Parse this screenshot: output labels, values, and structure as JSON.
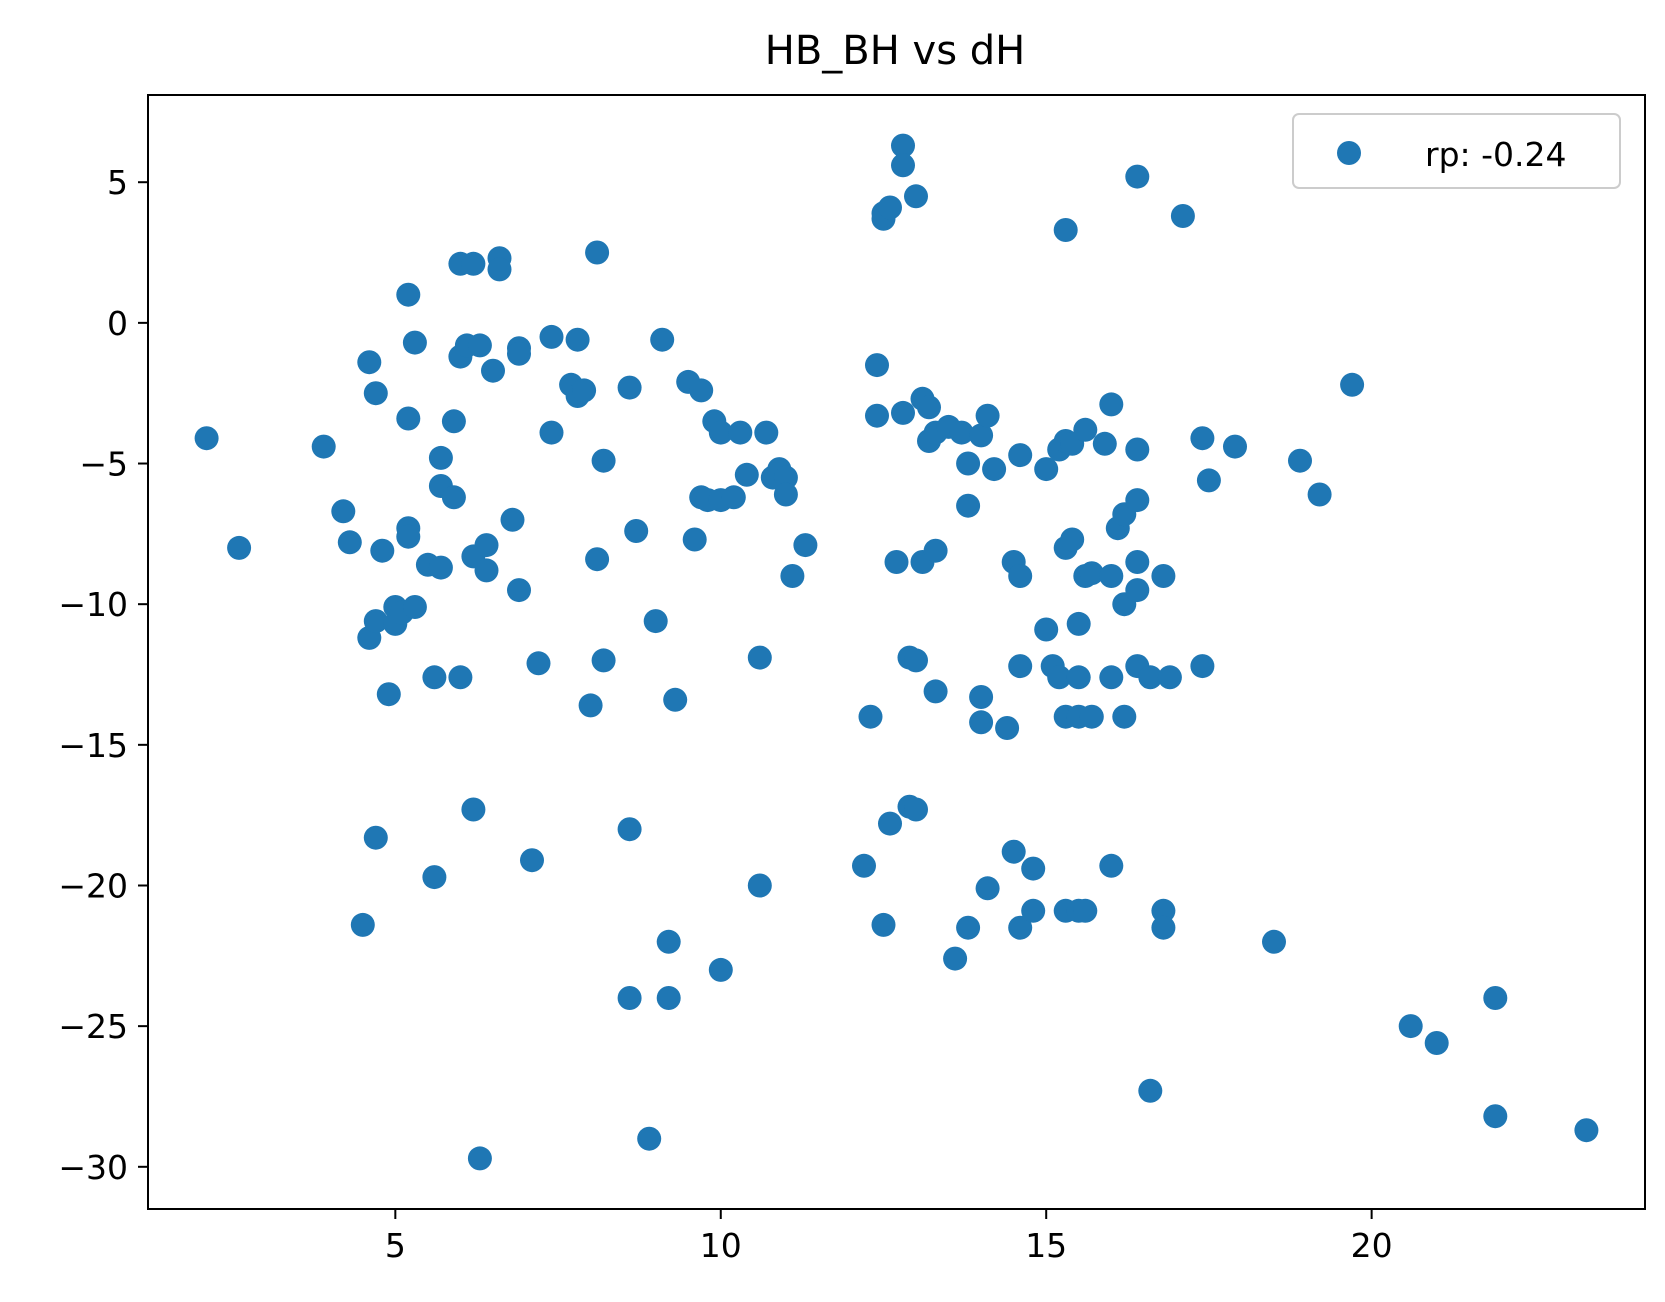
{
  "chart_data": {
    "type": "scatter",
    "title": "HB_BH vs dH",
    "xlabel": "",
    "ylabel": "",
    "xlim": [
      1.2,
      24.2
    ],
    "ylim": [
      -31.5,
      8.1
    ],
    "xticks": [
      5,
      10,
      15,
      20
    ],
    "yticks": [
      5,
      0,
      -5,
      -10,
      -15,
      -20,
      -25,
      -30
    ],
    "xtick_labels": [
      "5",
      "10",
      "15",
      "20"
    ],
    "ytick_labels": [
      "5",
      "0",
      "−5",
      "−10",
      "−15",
      "−20",
      "−25",
      "−30"
    ],
    "grid": false,
    "legend_position": "upper right",
    "series": [
      {
        "name": "rp: -0.24",
        "color": "#1f77b4",
        "points": [
          [
            2.1,
            -4.1
          ],
          [
            2.6,
            -8.0
          ],
          [
            3.9,
            -4.4
          ],
          [
            4.2,
            -6.7
          ],
          [
            4.3,
            -7.8
          ],
          [
            4.6,
            -1.4
          ],
          [
            4.7,
            -2.5
          ],
          [
            4.8,
            -8.1
          ],
          [
            4.6,
            -11.2
          ],
          [
            4.7,
            -10.6
          ],
          [
            4.9,
            -13.2
          ],
          [
            5.0,
            -10.1
          ],
          [
            5.0,
            -10.7
          ],
          [
            5.1,
            -10.3
          ],
          [
            5.2,
            1.0
          ],
          [
            5.2,
            -3.4
          ],
          [
            5.2,
            -7.3
          ],
          [
            5.2,
            -7.6
          ],
          [
            5.3,
            -0.7
          ],
          [
            5.3,
            -10.1
          ],
          [
            5.5,
            -8.6
          ],
          [
            5.6,
            -12.6
          ],
          [
            5.7,
            -4.8
          ],
          [
            5.7,
            -5.8
          ],
          [
            5.7,
            -8.7
          ],
          [
            5.9,
            -3.5
          ],
          [
            5.9,
            -6.2
          ],
          [
            6.0,
            2.1
          ],
          [
            6.0,
            -1.2
          ],
          [
            6.0,
            -12.6
          ],
          [
            6.1,
            -0.8
          ],
          [
            6.2,
            2.1
          ],
          [
            6.2,
            -8.3
          ],
          [
            6.3,
            -0.8
          ],
          [
            6.4,
            -7.9
          ],
          [
            6.4,
            -8.8
          ],
          [
            6.5,
            -1.7
          ],
          [
            6.6,
            2.3
          ],
          [
            6.6,
            1.9
          ],
          [
            6.8,
            -7.0
          ],
          [
            6.9,
            -0.9
          ],
          [
            6.9,
            -1.1
          ],
          [
            6.9,
            -9.5
          ],
          [
            7.2,
            -12.1
          ],
          [
            7.4,
            -0.5
          ],
          [
            7.4,
            -3.9
          ],
          [
            7.7,
            -2.2
          ],
          [
            7.8,
            -0.6
          ],
          [
            7.8,
            -2.6
          ],
          [
            7.9,
            -2.4
          ],
          [
            8.0,
            -13.6
          ],
          [
            8.1,
            2.5
          ],
          [
            8.1,
            -8.4
          ],
          [
            8.2,
            -4.9
          ],
          [
            8.2,
            -12.0
          ],
          [
            8.6,
            -2.3
          ],
          [
            8.7,
            -7.4
          ],
          [
            9.0,
            -10.6
          ],
          [
            9.1,
            -0.6
          ],
          [
            9.3,
            -13.4
          ],
          [
            9.5,
            -2.1
          ],
          [
            9.6,
            -7.7
          ],
          [
            9.7,
            -2.4
          ],
          [
            9.7,
            -6.2
          ],
          [
            9.8,
            -6.3
          ],
          [
            9.9,
            -3.5
          ],
          [
            10.0,
            -3.9
          ],
          [
            10.0,
            -6.3
          ],
          [
            10.2,
            -6.2
          ],
          [
            10.3,
            -3.9
          ],
          [
            10.4,
            -5.4
          ],
          [
            10.6,
            -11.9
          ],
          [
            10.7,
            -3.9
          ],
          [
            10.8,
            -5.5
          ],
          [
            10.9,
            -5.2
          ],
          [
            11.0,
            -5.5
          ],
          [
            11.0,
            -6.1
          ],
          [
            11.1,
            -9.0
          ],
          [
            11.3,
            -7.9
          ],
          [
            12.3,
            -14.0
          ],
          [
            12.4,
            -1.5
          ],
          [
            12.4,
            -3.3
          ],
          [
            12.5,
            3.9
          ],
          [
            12.5,
            3.7
          ],
          [
            12.6,
            4.1
          ],
          [
            12.7,
            -8.5
          ],
          [
            12.8,
            6.3
          ],
          [
            12.8,
            5.6
          ],
          [
            12.8,
            -3.2
          ],
          [
            12.9,
            -11.9
          ],
          [
            13.0,
            4.5
          ],
          [
            13.0,
            -12.0
          ],
          [
            13.1,
            -8.5
          ],
          [
            13.1,
            -2.7
          ],
          [
            13.2,
            -3.0
          ],
          [
            13.2,
            -4.2
          ],
          [
            13.3,
            -3.9
          ],
          [
            13.3,
            -8.1
          ],
          [
            13.3,
            -13.1
          ],
          [
            13.5,
            -3.7
          ],
          [
            13.7,
            -3.9
          ],
          [
            13.8,
            -5.0
          ],
          [
            13.8,
            -6.5
          ],
          [
            14.0,
            -4.0
          ],
          [
            14.0,
            -13.3
          ],
          [
            14.0,
            -14.2
          ],
          [
            14.1,
            -3.3
          ],
          [
            14.2,
            -5.2
          ],
          [
            14.4,
            -14.4
          ],
          [
            14.5,
            -8.5
          ],
          [
            14.6,
            -4.7
          ],
          [
            14.6,
            -9.0
          ],
          [
            14.6,
            -12.2
          ],
          [
            15.0,
            -5.2
          ],
          [
            15.0,
            -10.9
          ],
          [
            15.1,
            -12.2
          ],
          [
            15.2,
            -12.6
          ],
          [
            15.2,
            -4.5
          ],
          [
            15.3,
            3.3
          ],
          [
            15.3,
            -4.2
          ],
          [
            15.3,
            -8.0
          ],
          [
            15.3,
            -14.0
          ],
          [
            15.4,
            -4.3
          ],
          [
            15.4,
            -7.7
          ],
          [
            15.5,
            -10.7
          ],
          [
            15.5,
            -12.6
          ],
          [
            15.5,
            -14.0
          ],
          [
            15.6,
            -3.8
          ],
          [
            15.6,
            -9.0
          ],
          [
            15.7,
            -8.9
          ],
          [
            15.7,
            -14.0
          ],
          [
            15.9,
            -4.3
          ],
          [
            16.0,
            -2.9
          ],
          [
            16.0,
            -9.0
          ],
          [
            16.0,
            -12.6
          ],
          [
            16.1,
            -7.3
          ],
          [
            16.2,
            -6.8
          ],
          [
            16.2,
            -10.0
          ],
          [
            16.2,
            -14.0
          ],
          [
            16.4,
            5.2
          ],
          [
            16.4,
            -4.5
          ],
          [
            16.4,
            -6.3
          ],
          [
            16.4,
            -8.5
          ],
          [
            16.4,
            -9.5
          ],
          [
            16.4,
            -12.2
          ],
          [
            16.6,
            -12.6
          ],
          [
            16.8,
            -9.0
          ],
          [
            16.9,
            -12.6
          ],
          [
            17.1,
            3.8
          ],
          [
            17.4,
            -4.1
          ],
          [
            17.4,
            -12.2
          ],
          [
            17.5,
            -5.6
          ],
          [
            17.9,
            -4.4
          ],
          [
            18.9,
            -4.9
          ],
          [
            19.2,
            -6.1
          ],
          [
            19.7,
            -2.2
          ],
          [
            4.5,
            -21.4
          ],
          [
            4.7,
            -18.3
          ],
          [
            5.6,
            -19.7
          ],
          [
            6.2,
            -17.3
          ],
          [
            6.3,
            -29.7
          ],
          [
            7.1,
            -19.1
          ],
          [
            8.6,
            -18.0
          ],
          [
            8.6,
            -24.0
          ],
          [
            8.9,
            -29.0
          ],
          [
            9.2,
            -22.0
          ],
          [
            9.2,
            -24.0
          ],
          [
            10.0,
            -23.0
          ],
          [
            10.6,
            -20.0
          ],
          [
            12.2,
            -19.3
          ],
          [
            12.5,
            -21.4
          ],
          [
            12.6,
            -17.8
          ],
          [
            12.9,
            -17.2
          ],
          [
            13.0,
            -17.3
          ],
          [
            13.6,
            -22.6
          ],
          [
            13.8,
            -21.5
          ],
          [
            14.1,
            -20.1
          ],
          [
            14.5,
            -18.8
          ],
          [
            14.6,
            -21.5
          ],
          [
            14.8,
            -19.4
          ],
          [
            14.8,
            -20.9
          ],
          [
            15.3,
            -20.9
          ],
          [
            15.5,
            -20.9
          ],
          [
            15.6,
            -20.9
          ],
          [
            16.0,
            -19.3
          ],
          [
            16.6,
            -27.3
          ],
          [
            16.8,
            -20.9
          ],
          [
            16.8,
            -21.5
          ],
          [
            18.5,
            -22.0
          ],
          [
            20.6,
            -25.0
          ],
          [
            21.0,
            -25.6
          ],
          [
            21.9,
            -24.0
          ],
          [
            21.9,
            -28.2
          ],
          [
            23.3,
            -28.7
          ]
        ]
      }
    ]
  }
}
